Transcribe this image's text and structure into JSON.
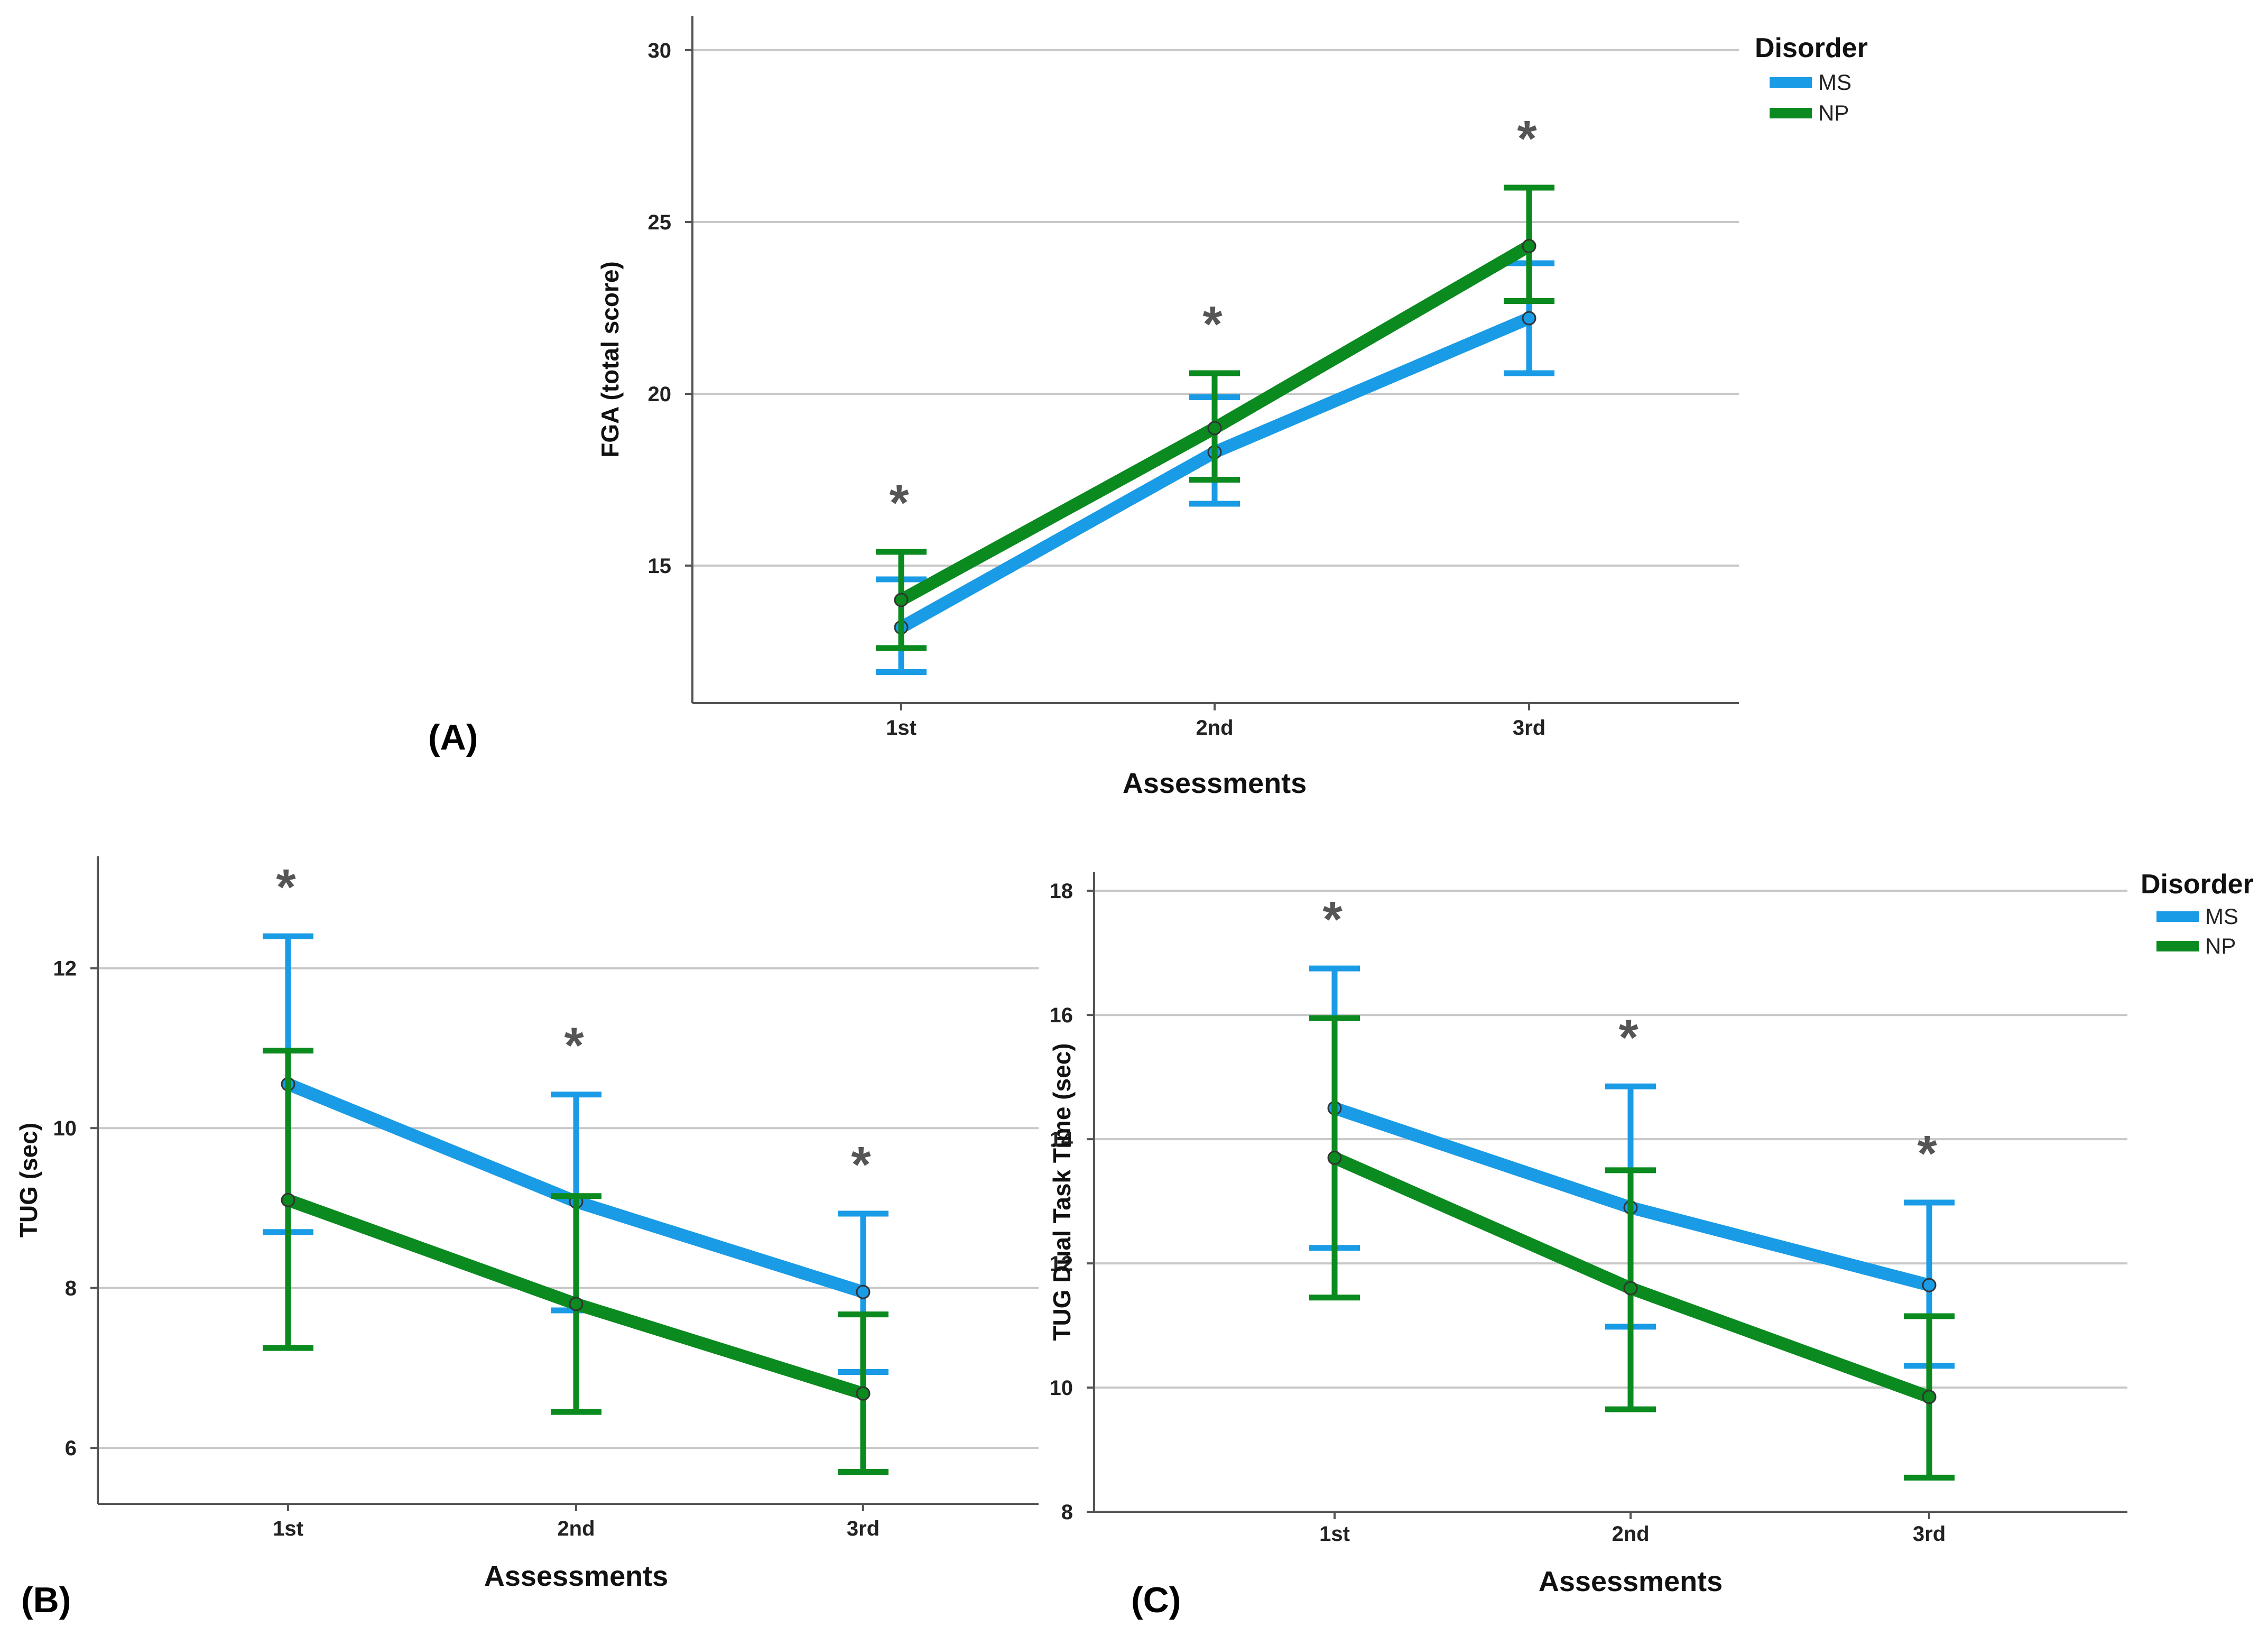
{
  "colors": {
    "MS": "#1a9be6",
    "NP": "#0a8a1f",
    "grid": "#c8c8c8",
    "axis": "#555555",
    "star": "#555555"
  },
  "panel_labels": {
    "A": "(A)",
    "B": "(B)",
    "C": "(C)"
  },
  "legend": {
    "title": "Disorder",
    "entries": [
      "MS",
      "NP"
    ]
  },
  "chart_data": [
    {
      "id": "A",
      "type": "line",
      "title": "",
      "xlabel": "Assessments",
      "ylabel": "FGA (total score)",
      "categories": [
        "1st",
        "2nd",
        "3rd"
      ],
      "ylim": [
        11,
        31
      ],
      "yticks": [
        15,
        20,
        25,
        30
      ],
      "grid": true,
      "legend": "top-right",
      "significance": [
        "*",
        "*",
        "*"
      ],
      "series": [
        {
          "name": "MS",
          "values": [
            13.2,
            18.3,
            22.2
          ],
          "lower": [
            11.9,
            16.8,
            20.6
          ],
          "upper": [
            14.6,
            19.9,
            23.8
          ]
        },
        {
          "name": "NP",
          "values": [
            14.0,
            19.0,
            24.3
          ],
          "lower": [
            12.6,
            17.5,
            22.7
          ],
          "upper": [
            15.4,
            20.6,
            26.0
          ]
        }
      ]
    },
    {
      "id": "B",
      "type": "line",
      "title": "",
      "xlabel": "Assessments",
      "ylabel": "TUG (sec)",
      "categories": [
        "1st",
        "2nd",
        "3rd"
      ],
      "ylim": [
        5.3,
        13.4
      ],
      "yticks": [
        6,
        8,
        10,
        12
      ],
      "grid": true,
      "legend": "none",
      "significance": [
        "*",
        "*",
        "*"
      ],
      "series": [
        {
          "name": "MS",
          "values": [
            10.55,
            9.08,
            7.95
          ],
          "lower": [
            8.7,
            7.72,
            6.95
          ],
          "upper": [
            12.4,
            10.42,
            8.93
          ]
        },
        {
          "name": "NP",
          "values": [
            9.1,
            7.8,
            6.68
          ],
          "lower": [
            7.25,
            6.45,
            5.7
          ],
          "upper": [
            10.97,
            9.15,
            7.67
          ]
        }
      ]
    },
    {
      "id": "C",
      "type": "line",
      "title": "",
      "xlabel": "Assessments",
      "ylabel": "TUG Dual Task Time (sec)",
      "categories": [
        "1st",
        "2nd",
        "3rd"
      ],
      "ylim": [
        8,
        18.3
      ],
      "yticks": [
        8,
        10,
        12,
        14,
        16,
        18
      ],
      "grid": true,
      "legend": "top-right",
      "significance": [
        "*",
        "*",
        "*"
      ],
      "series": [
        {
          "name": "MS",
          "values": [
            14.5,
            12.9,
            11.65
          ],
          "lower": [
            12.25,
            10.98,
            10.35
          ],
          "upper": [
            16.75,
            14.85,
            12.98
          ]
        },
        {
          "name": "NP",
          "values": [
            13.7,
            11.6,
            9.85
          ],
          "lower": [
            11.45,
            9.65,
            8.55
          ],
          "upper": [
            15.95,
            13.5,
            11.15
          ]
        }
      ]
    }
  ]
}
